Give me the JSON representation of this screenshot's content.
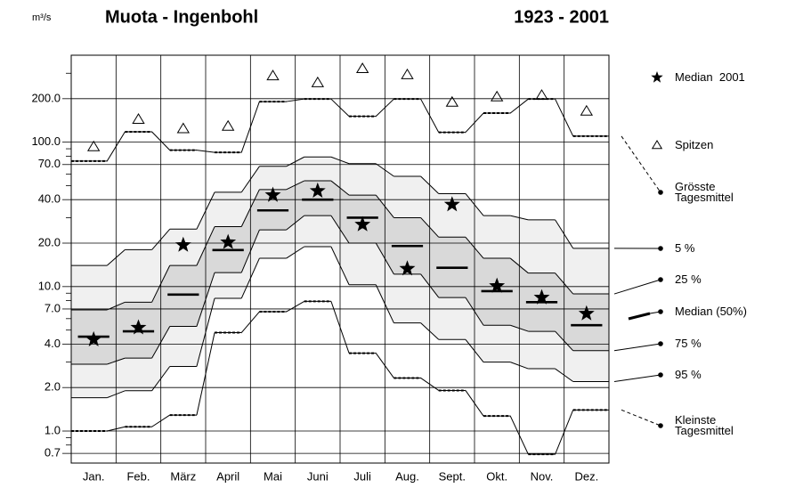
{
  "chart_data": {
    "type": "percentile-steps",
    "title": "Muota - Ingenbohl",
    "subtitle": "1923 - 2001",
    "y_unit": "m³/s",
    "categories": [
      "Jan.",
      "Feb.",
      "März",
      "April",
      "Mai",
      "Juni",
      "Juli",
      "Aug.",
      "Sept.",
      "Okt.",
      "Nov.",
      "Dez."
    ],
    "ylim": [
      0.6,
      400
    ],
    "log_scale": true,
    "grid": true,
    "yticks": [
      {
        "value": 0.7,
        "label": "0.7"
      },
      {
        "value": 1,
        "label": "1.0"
      },
      {
        "value": 2,
        "label": "2.0"
      },
      {
        "value": 4,
        "label": "4.0"
      },
      {
        "value": 7,
        "label": "7.0"
      },
      {
        "value": 10,
        "label": "10.0"
      },
      {
        "value": 20,
        "label": "20.0"
      },
      {
        "value": 40,
        "label": "40.0"
      },
      {
        "value": 70,
        "label": "70.0"
      },
      {
        "value": 100,
        "label": "100.0"
      },
      {
        "value": 200,
        "label": "200.0"
      }
    ],
    "yminor": [
      0.8,
      0.9,
      3,
      5,
      6,
      8,
      9,
      30,
      50,
      60,
      80,
      90,
      300
    ],
    "legend": "right",
    "series": [
      {
        "name": "Median  2001",
        "style": "star",
        "color": "#000000",
        "values": [
          4.3,
          5.2,
          19.4,
          20.3,
          43,
          46,
          26.9,
          13.3,
          37,
          10.1,
          8.4,
          6.5
        ]
      },
      {
        "name": "Spitzen",
        "style": "triangle",
        "color": "#000000",
        "values": [
          93,
          144,
          124,
          129,
          288,
          258,
          323,
          293,
          189,
          206,
          211,
          164
        ]
      },
      {
        "name": "Grösste Tagesmittel",
        "style": "dashed",
        "color": "#000000",
        "values": [
          74,
          118,
          88,
          85,
          191,
          199,
          151,
          199,
          117,
          159,
          199,
          110
        ]
      },
      {
        "name": "5 %",
        "style": "outer-band",
        "color": "#000000",
        "fill": "#f0f0f0",
        "values": [
          14,
          18,
          25,
          45,
          68,
          79,
          71,
          58,
          44,
          31,
          29,
          18.4
        ]
      },
      {
        "name": "25 %",
        "style": "inner-band",
        "color": "#000000",
        "fill": "#d9d9d9",
        "values": [
          6.9,
          7.8,
          14,
          26,
          47,
          54,
          43,
          30,
          22,
          15.7,
          12.4,
          8.9
        ]
      },
      {
        "name": "Median (50%)",
        "style": "median-bar",
        "color": "#000000",
        "values": [
          4.5,
          4.9,
          8.8,
          17.9,
          33.7,
          40,
          30,
          19.1,
          13.5,
          9.3,
          7.8,
          5.4
        ]
      },
      {
        "name": "75 %",
        "style": "inner-band",
        "color": "#000000",
        "fill": "#d9d9d9",
        "values": [
          2.9,
          3.2,
          5.3,
          12.5,
          24.7,
          31,
          20,
          12.2,
          8.4,
          5.4,
          4.9,
          3.6
        ]
      },
      {
        "name": "95 %",
        "style": "outer-band",
        "color": "#000000",
        "fill": "#f0f0f0",
        "values": [
          1.7,
          1.9,
          2.8,
          8.3,
          15.7,
          18.9,
          10.3,
          5.6,
          4.3,
          3.0,
          2.7,
          2.2
        ]
      },
      {
        "name": "Kleinste Tagesmittel",
        "style": "dashed",
        "color": "#000000",
        "values": [
          1.0,
          1.07,
          1.29,
          4.8,
          6.7,
          7.9,
          3.46,
          2.33,
          1.91,
          1.27,
          0.69,
          1.4
        ]
      }
    ]
  }
}
